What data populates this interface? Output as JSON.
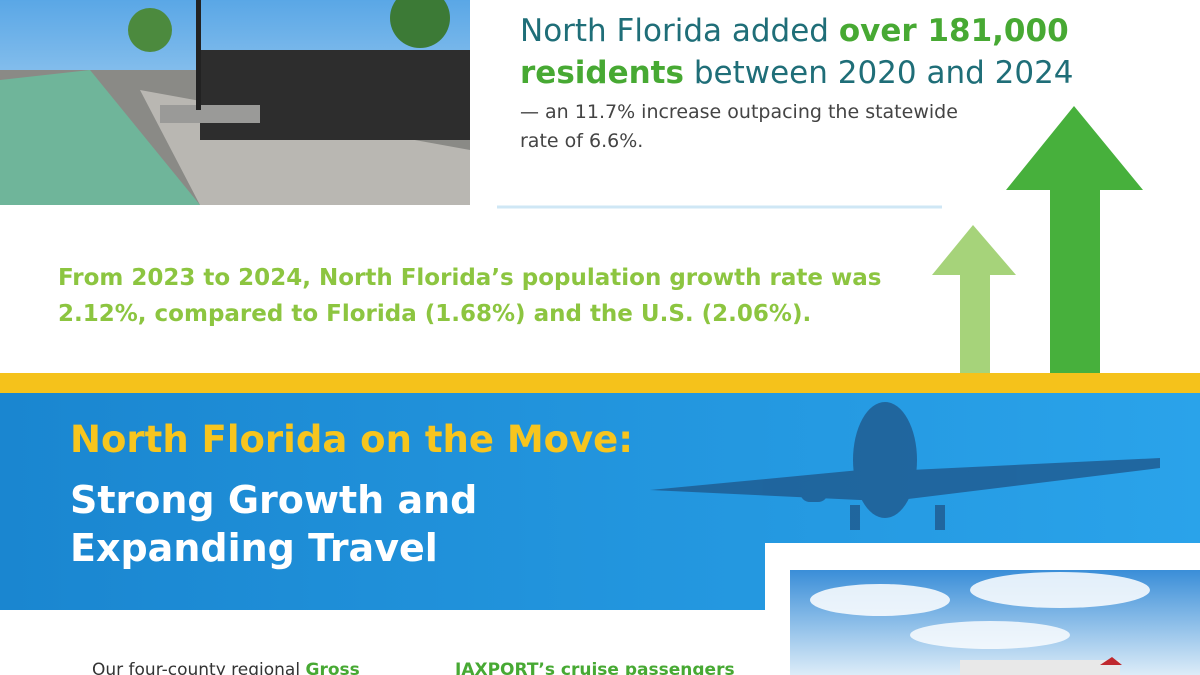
{
  "header": {
    "headline": {
      "lead": "North Florida added",
      "highlight": "over 181,000 residents",
      "tail": "between 2020 and 2024"
    },
    "detail": "— an 11.7% increase outpacing the statewide rate of 6.6%."
  },
  "growth_note": "From 2023 to 2024, North Florida’s population growth rate was 2.12%, compared to Florida (1.68%) and the U.S. (2.06%).",
  "banner": {
    "kicker": "North Florida on the Move:",
    "title": "Strong Growth and Expanding Travel"
  },
  "bullets": [
    {
      "lead": "Our four-county regional",
      "highlight": "Gross"
    },
    {
      "highlight": "JAXPORT’s cruise passengers"
    }
  ]
}
